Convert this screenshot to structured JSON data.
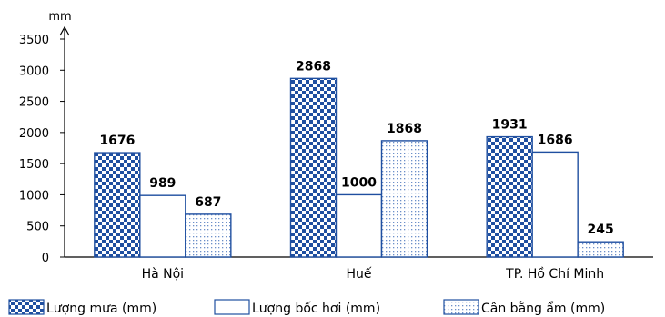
{
  "chart_data": {
    "type": "bar",
    "ylabel": "mm",
    "ylim": [
      0,
      3500
    ],
    "yticks": [
      0,
      500,
      1000,
      1500,
      2000,
      2500,
      3000,
      3500
    ],
    "grid": false,
    "legend_position": "bottom",
    "categories": [
      "Hà Nội",
      "Huế",
      "TP. Hồ Chí Minh"
    ],
    "series": [
      {
        "name": "Lượng mưa (mm)",
        "values": [
          1676,
          2868,
          1931
        ],
        "pattern": "checker",
        "color": "#1f4fa0"
      },
      {
        "name": "Lượng bốc hơi (mm)",
        "values": [
          989,
          1000,
          1686
        ],
        "pattern": "none",
        "color": "#1f4fa0"
      },
      {
        "name": "Cân bằng ẩm (mm)",
        "values": [
          687,
          1868,
          245
        ],
        "pattern": "dots",
        "color": "#1f4fa0"
      }
    ]
  }
}
